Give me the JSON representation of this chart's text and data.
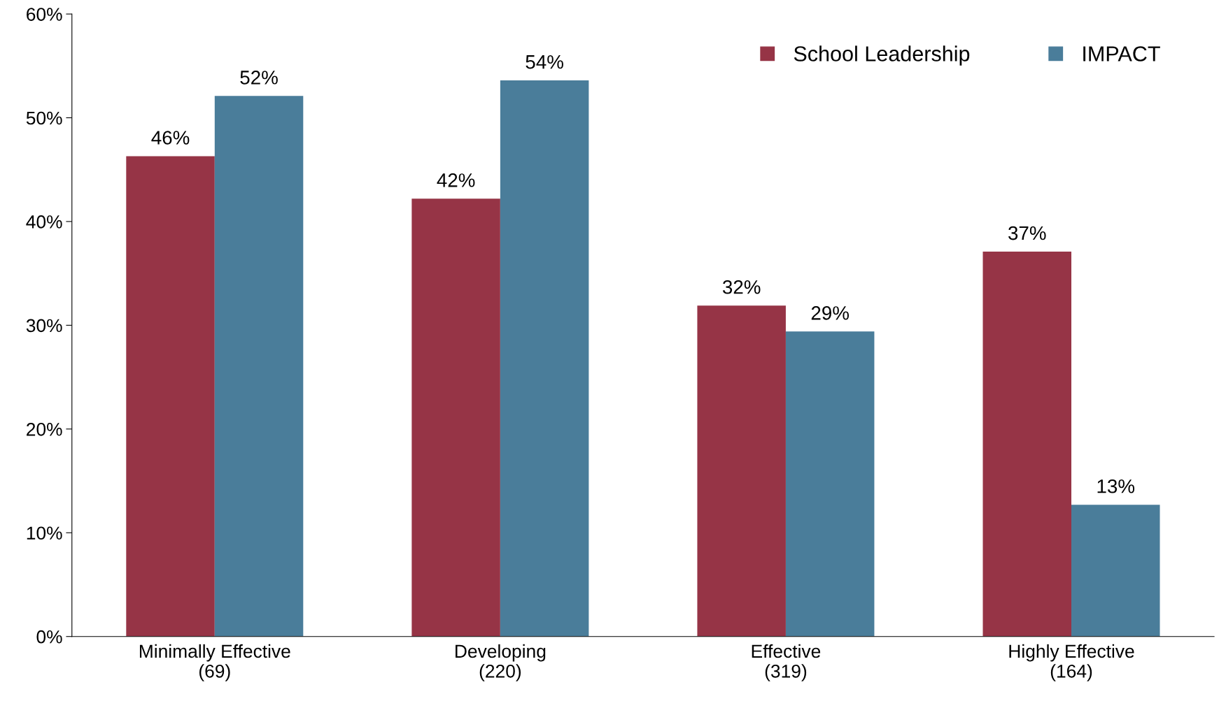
{
  "chart_data": {
    "type": "bar",
    "categories": [
      "Minimally Effective\n(69)",
      "Developing\n(220)",
      "Effective\n(319)",
      "Highly Effective\n(164)"
    ],
    "series": [
      {
        "name": "School Leadership",
        "color": "#963446",
        "values": [
          46.3,
          42.2,
          31.9,
          37.1
        ],
        "value_labels": [
          "46%",
          "42%",
          "32%",
          "37%"
        ]
      },
      {
        "name": "IMPACT",
        "color": "#4a7d9a",
        "values": [
          52.1,
          53.6,
          29.4,
          12.7
        ],
        "value_labels": [
          "52%",
          "54%",
          "29%",
          "13%"
        ]
      }
    ],
    "ylim": [
      0,
      60
    ],
    "yticks": [
      {
        "value": 0,
        "label": "0%"
      },
      {
        "value": 10,
        "label": "10%"
      },
      {
        "value": 20,
        "label": "20%"
      },
      {
        "value": 30,
        "label": "30%"
      },
      {
        "value": 40,
        "label": "40%"
      },
      {
        "value": 50,
        "label": "50%"
      },
      {
        "value": 60,
        "label": "60%"
      }
    ],
    "legend": "top right",
    "grid": false
  }
}
